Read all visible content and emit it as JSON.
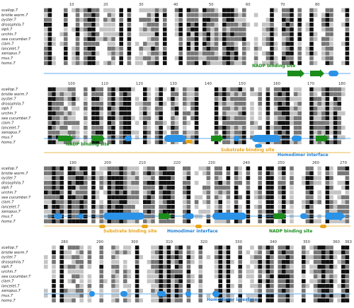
{
  "species": [
    "scallop.7",
    "bristle worm.7",
    "oyster.7",
    "drosophila.7",
    "sipli.7",
    "urchin.7",
    "sea cucumber.7",
    "clam.7",
    "lancelet.7",
    "xenopus.7",
    "mus.7",
    "homo.7"
  ],
  "blocks": [
    {
      "ruler": [
        "10",
        "20",
        "30",
        "40",
        "50",
        "60",
        "70",
        "80"
      ],
      "seed": 11
    },
    {
      "ruler": [
        "100",
        "110",
        "120",
        "130",
        "140",
        "150",
        "160",
        "170",
        "180"
      ],
      "seed": 23
    },
    {
      "ruler": [
        "190",
        "200",
        "210",
        "220",
        "230",
        "240",
        "250",
        "260",
        "270"
      ],
      "seed": 37
    },
    {
      "ruler": [
        "280",
        "290",
        "300",
        "310",
        "320",
        "330",
        "340",
        "350",
        "360",
        "363"
      ],
      "seed": 53
    }
  ],
  "annotations": {
    "nadp_1": "NADP binding site",
    "nadp_2": "NADP binding site",
    "substrate_1": "Substrate binding site",
    "homodimer_1": "Homodimer interface",
    "substrate_2": "Substrate binding site",
    "homodimer_2": "Homodimer interface",
    "nadp_3": "NADP binding site",
    "homodimer_3": "Homodimer interface"
  },
  "colors": {
    "nadp": "#1a8c1a",
    "substrate": "#e8a317",
    "homodimer": "#1f7fd6",
    "strand": "#1a8c1a",
    "helix": "#2a93e8",
    "conserved_dark": "#111111",
    "conserved_mid": "#777777",
    "conserved_light": "#c4c4c4"
  }
}
